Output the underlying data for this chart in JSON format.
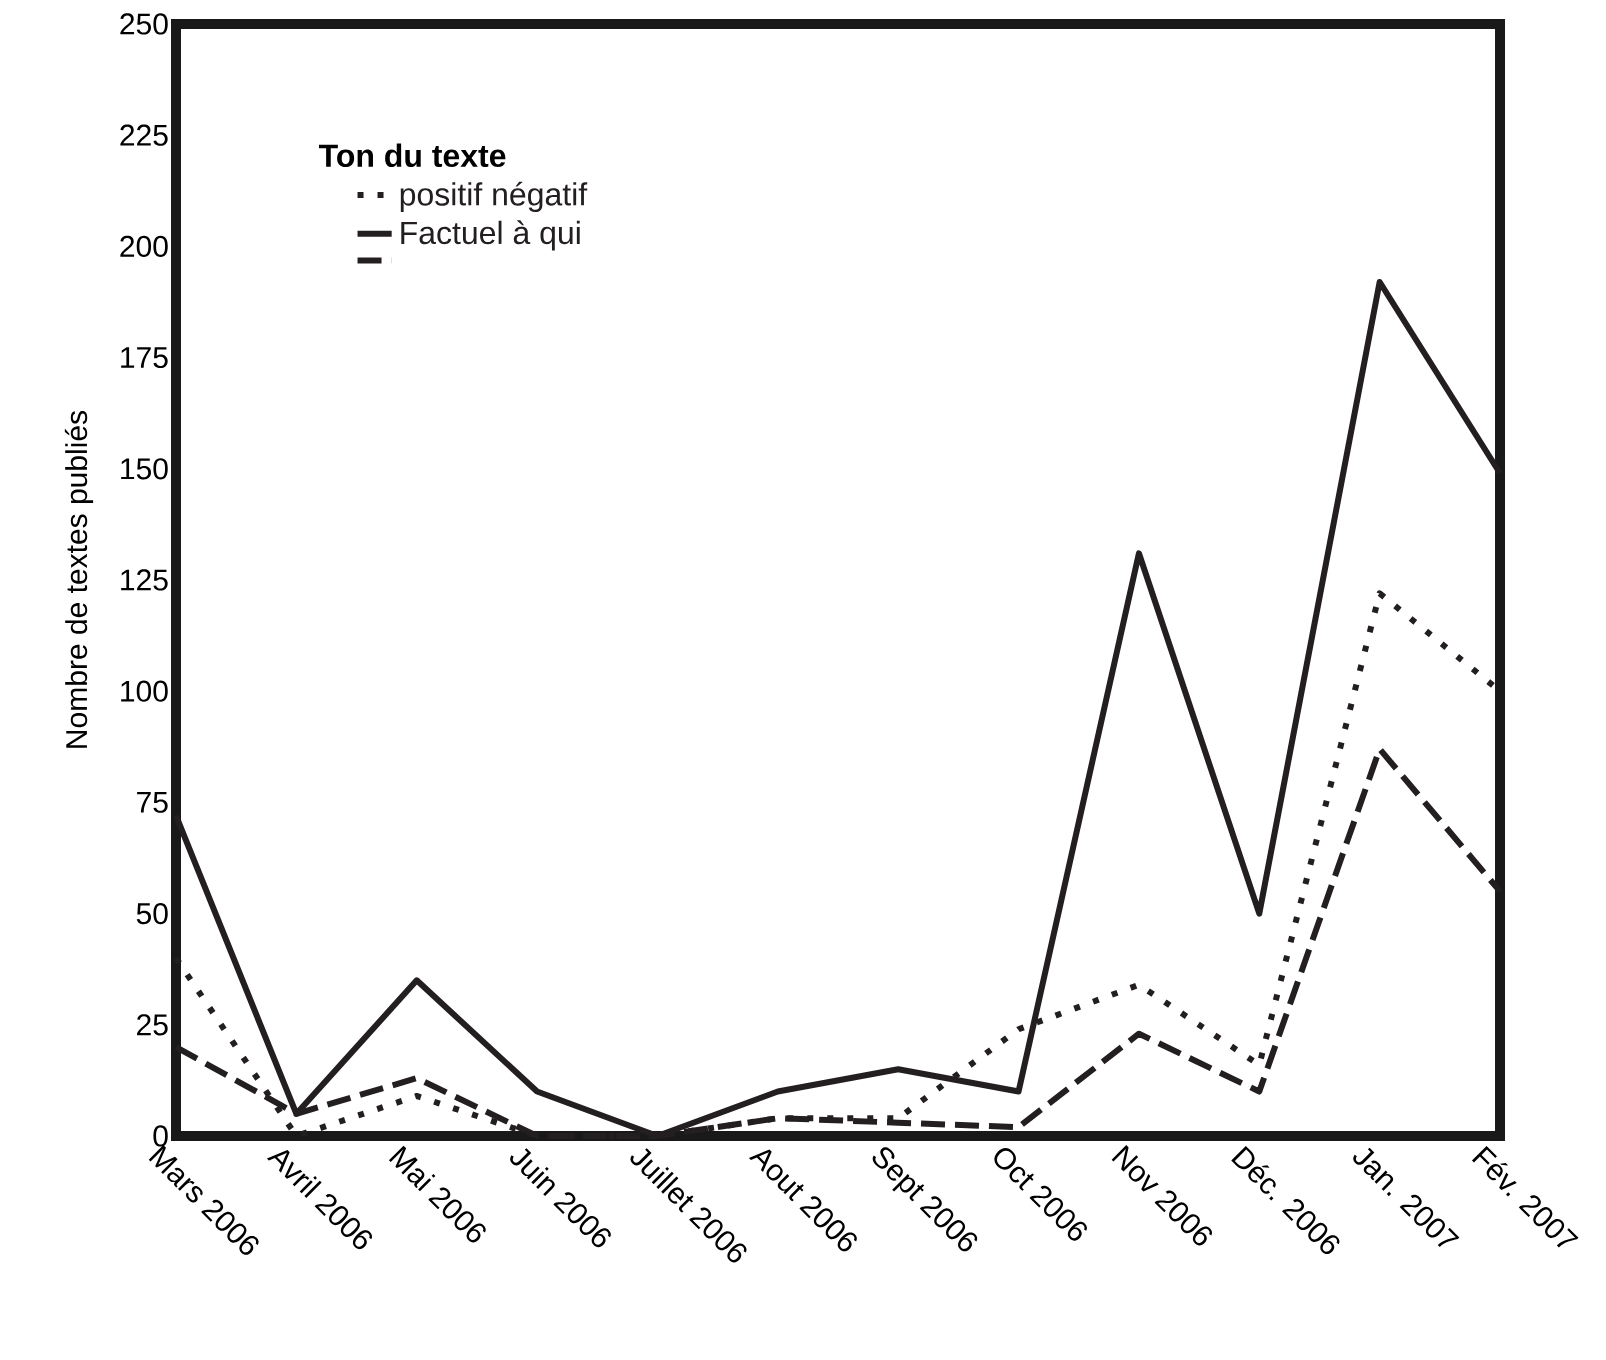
{
  "chart_data": {
    "type": "line",
    "ylabel": "Nombre de textes publiés",
    "legend_title": "Ton du texte",
    "legend": "top left",
    "categories": [
      "Mars 2006",
      "Avril 2006",
      "Mai 2006",
      "Juin 2006",
      "Juillet 2006",
      "Aout 2006",
      "Sept 2006",
      "Oct 2006",
      "Nov 2006",
      "Déc. 2006",
      "Jan. 2007",
      "Fév. 2007"
    ],
    "ylim": [
      0,
      250
    ],
    "yticks": [
      0,
      25,
      50,
      75,
      100,
      125,
      150,
      175,
      200,
      225,
      250
    ],
    "marker": "none",
    "series": [
      {
        "name": "positif négatif",
        "color": "#231f20",
        "line_style": "dotted",
        "values": [
          40,
          0,
          9,
          0,
          0,
          4,
          4,
          24,
          34,
          16,
          122,
          100
        ]
      },
      {
        "name": "Factuel à qui",
        "color": "#231f20",
        "line_style": "solid",
        "values": [
          72,
          5,
          35,
          10,
          0,
          10,
          15,
          10,
          131,
          50,
          192,
          149
        ]
      },
      {
        "color": "#231f20",
        "line_style": "dashed",
        "values": [
          20,
          5,
          13,
          0,
          0,
          4,
          3,
          2,
          23,
          10,
          87,
          55
        ]
      }
    ]
  }
}
